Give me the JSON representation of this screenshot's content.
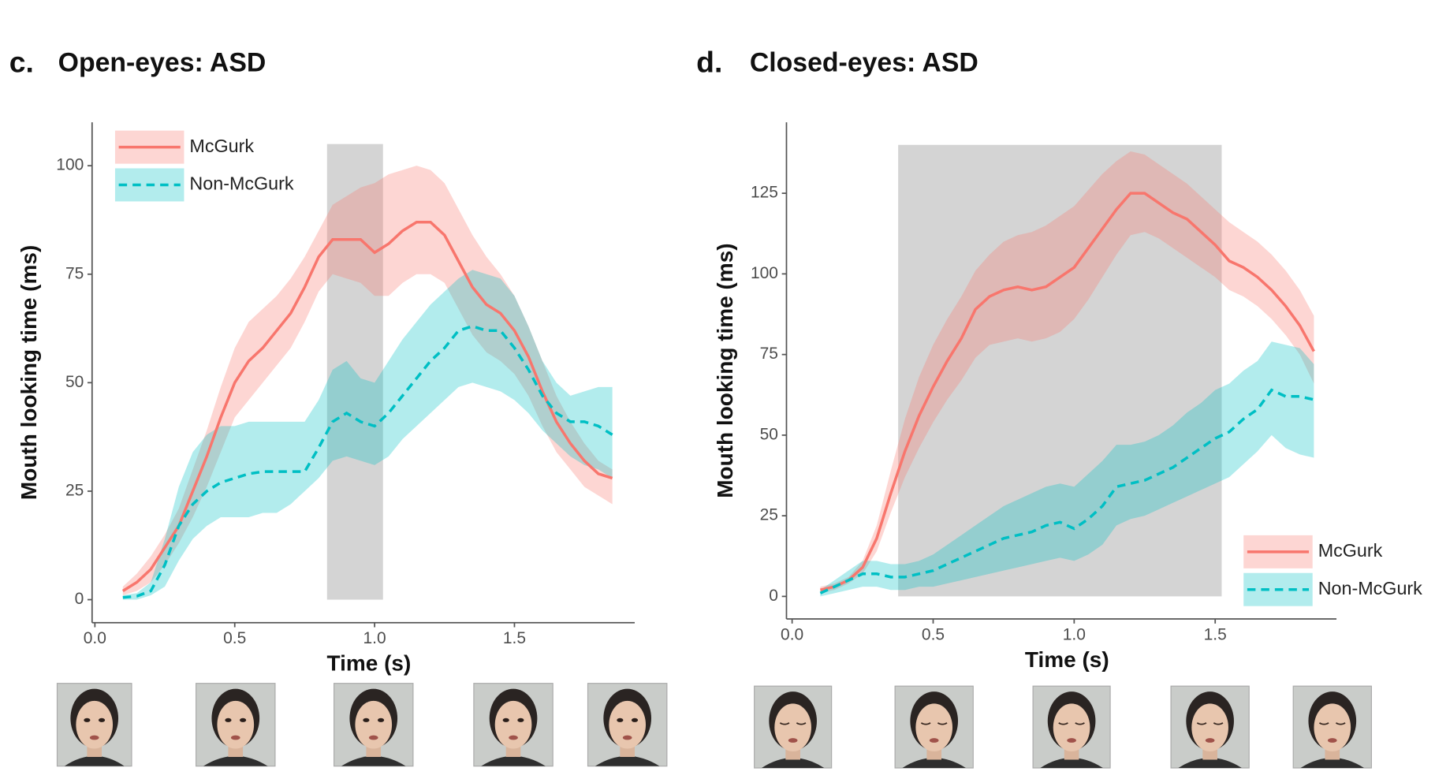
{
  "chart_data": [
    {
      "type": "line",
      "panel": "c.",
      "title": "Open-eyes: ASD",
      "xlabel": "Time (s)",
      "ylabel": "Mouth looking time (ms)",
      "xlim": [
        -0.01,
        1.93
      ],
      "ylim": [
        -5.3,
        110
      ],
      "xticks": [
        {
          "value": 0,
          "label": "0.0"
        },
        {
          "value": 0.5,
          "label": "0.5"
        },
        {
          "value": 1,
          "label": "1.0"
        },
        {
          "value": 1.5,
          "label": "1.5"
        }
      ],
      "yticks": [
        0,
        25,
        50,
        75,
        100
      ],
      "highlight": {
        "x": [
          0.83,
          1.03
        ],
        "y": [
          0,
          105
        ],
        "color": "#a9aaa9"
      },
      "legend": "top-left",
      "x": [
        0.1,
        0.15,
        0.2,
        0.25,
        0.3,
        0.35,
        0.4,
        0.45,
        0.5,
        0.55,
        0.6,
        0.65,
        0.7,
        0.75,
        0.8,
        0.85,
        0.9,
        0.95,
        1.0,
        1.05,
        1.1,
        1.15,
        1.2,
        1.25,
        1.3,
        1.35,
        1.4,
        1.45,
        1.5,
        1.55,
        1.6,
        1.65,
        1.7,
        1.75,
        1.8,
        1.85
      ],
      "series": [
        {
          "name": "McGurk",
          "color": "#f8766d",
          "linestyle": "solid",
          "values": [
            2,
            4,
            7,
            12,
            17,
            25,
            33,
            42,
            50,
            55,
            58,
            62,
            66,
            72,
            79,
            83,
            83,
            83,
            80,
            82,
            85,
            87,
            87,
            84,
            78,
            72,
            68,
            66,
            62,
            56,
            48,
            41,
            36,
            32,
            29,
            28
          ],
          "upper": [
            3,
            6,
            10,
            15,
            21,
            30,
            39,
            49,
            58,
            64,
            67,
            70,
            74,
            79,
            85,
            91,
            93,
            95,
            96,
            98,
            99,
            100,
            99,
            96,
            90,
            84,
            79,
            75,
            70,
            63,
            55,
            47,
            41,
            36,
            32,
            30
          ],
          "lower": [
            1,
            2,
            4,
            8,
            13,
            19,
            26,
            34,
            42,
            46,
            50,
            54,
            58,
            64,
            71,
            75,
            74,
            73,
            70,
            70,
            73,
            75,
            75,
            73,
            67,
            61,
            57,
            55,
            52,
            47,
            40,
            34,
            30,
            26,
            24,
            22
          ]
        },
        {
          "name": "Non-McGurk",
          "color": "#00bfc4",
          "linestyle": "dashed",
          "values": [
            0.5,
            0.8,
            2,
            8,
            17,
            22,
            25,
            27,
            28,
            29,
            29.5,
            29.5,
            29.5,
            29.5,
            35,
            41,
            43,
            41,
            40,
            43,
            47,
            51,
            55,
            58,
            62,
            63,
            62,
            62,
            58,
            53,
            47,
            43,
            41,
            41,
            40,
            38
          ],
          "upper": [
            1,
            1.5,
            4,
            14,
            26,
            34,
            38,
            40,
            40,
            41,
            41,
            41,
            41,
            41,
            46,
            53,
            55,
            51,
            50,
            55,
            60,
            64,
            68,
            71,
            74,
            76,
            75,
            74,
            70,
            63,
            55,
            50,
            47,
            48,
            49,
            49
          ],
          "lower": [
            0,
            0,
            1,
            3,
            9,
            14,
            17,
            19,
            19,
            19,
            20,
            20,
            22,
            25,
            28,
            32,
            33,
            32,
            31,
            33,
            37,
            40,
            43,
            46,
            49,
            50,
            49,
            48,
            46,
            43,
            39,
            36,
            33,
            31,
            30,
            28
          ]
        }
      ]
    },
    {
      "type": "line",
      "panel": "d.",
      "title": "Closed-eyes: ASD",
      "xlabel": "Time (s)",
      "ylabel": "Mouth looking time (ms)",
      "xlim": [
        -0.02,
        1.93
      ],
      "ylim": [
        -7,
        147
      ],
      "xticks": [
        {
          "value": 0,
          "label": "0.0"
        },
        {
          "value": 0.5,
          "label": "0.5"
        },
        {
          "value": 1,
          "label": "1.0"
        },
        {
          "value": 1.5,
          "label": "1.5"
        }
      ],
      "yticks": [
        0,
        25,
        50,
        75,
        100,
        125
      ],
      "highlight": {
        "x": [
          0.376,
          1.523
        ],
        "y": [
          0,
          140
        ],
        "color": "#a9aaa9"
      },
      "legend": "bottom-right",
      "x": [
        0.1,
        0.15,
        0.2,
        0.25,
        0.3,
        0.35,
        0.4,
        0.45,
        0.5,
        0.55,
        0.6,
        0.65,
        0.7,
        0.75,
        0.8,
        0.85,
        0.9,
        0.95,
        1.0,
        1.05,
        1.1,
        1.15,
        1.2,
        1.25,
        1.3,
        1.35,
        1.4,
        1.45,
        1.5,
        1.55,
        1.6,
        1.65,
        1.7,
        1.75,
        1.8,
        1.85
      ],
      "series": [
        {
          "name": "McGurk",
          "color": "#f8766d",
          "linestyle": "solid",
          "values": [
            2,
            3,
            5,
            9,
            18,
            32,
            45,
            56,
            65,
            73,
            80,
            89,
            93,
            95,
            96,
            95,
            96,
            99,
            102,
            108,
            114,
            120,
            125,
            125,
            122,
            119,
            117,
            113,
            109,
            104,
            102,
            99,
            95,
            90,
            84,
            76
          ],
          "upper": [
            3,
            4,
            6,
            11,
            22,
            39,
            55,
            68,
            78,
            86,
            93,
            101,
            106,
            110,
            112,
            113,
            115,
            118,
            121,
            126,
            131,
            135,
            138,
            137,
            134,
            131,
            128,
            124,
            120,
            116,
            113,
            110,
            106,
            101,
            95,
            87
          ],
          "lower": [
            1,
            2,
            4,
            7,
            14,
            26,
            37,
            46,
            54,
            61,
            67,
            74,
            78,
            79,
            80,
            79,
            80,
            82,
            86,
            92,
            99,
            106,
            112,
            113,
            111,
            108,
            105,
            102,
            99,
            95,
            93,
            90,
            86,
            81,
            75,
            66
          ]
        },
        {
          "name": "Non-McGurk",
          "color": "#00bfc4",
          "linestyle": "dashed",
          "values": [
            1,
            3,
            5,
            7,
            7,
            6,
            6,
            7,
            8,
            10,
            12,
            14,
            16,
            18,
            19,
            20,
            22,
            23,
            21,
            24,
            28,
            34,
            35,
            36,
            38,
            40,
            43,
            46,
            49,
            51,
            55,
            58,
            64,
            62,
            62,
            61
          ],
          "upper": [
            2,
            5,
            8,
            11,
            11,
            10,
            10,
            11,
            13,
            16,
            19,
            22,
            25,
            28,
            30,
            32,
            34,
            35,
            34,
            38,
            42,
            47,
            47,
            48,
            50,
            53,
            57,
            60,
            64,
            66,
            70,
            73,
            79,
            78,
            77,
            72
          ],
          "lower": [
            0,
            1,
            2,
            3,
            3,
            2,
            2,
            3,
            3,
            4,
            5,
            6,
            7,
            8,
            9,
            10,
            11,
            12,
            11,
            13,
            16,
            22,
            24,
            25,
            27,
            29,
            31,
            33,
            35,
            37,
            41,
            45,
            50,
            46,
            44,
            43
          ]
        }
      ]
    }
  ]
}
